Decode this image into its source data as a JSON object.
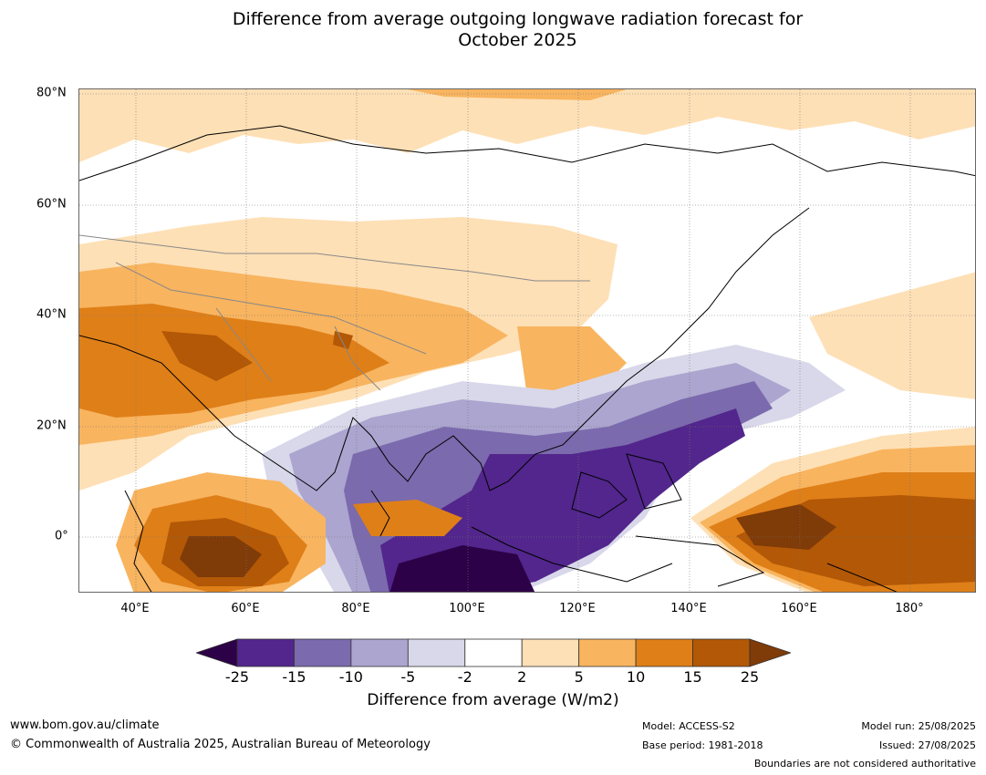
{
  "title_line1": "Difference from average outgoing longwave radiation forecast for",
  "title_line2": "October 2025",
  "lat_labels": [
    "80°N",
    "60°N",
    "40°N",
    "20°N",
    "0°"
  ],
  "lon_labels": [
    "40°E",
    "60°E",
    "80°E",
    "100°E",
    "120°E",
    "140°E",
    "160°E",
    "180°"
  ],
  "colorbar": {
    "ticks": [
      "-25",
      "-15",
      "-10",
      "-5",
      "-2",
      "2",
      "5",
      "10",
      "15",
      "25"
    ],
    "colors": [
      "#2d0147",
      "#52268c",
      "#7b6aad",
      "#aba5cf",
      "#d8d8ea",
      "#ffffff",
      "#fee0b6",
      "#f8b45f",
      "#df7f18",
      "#b25806",
      "#7f3b08"
    ],
    "label": "Difference from average (W/m2)"
  },
  "footer": {
    "website": "www.bom.gov.au/climate",
    "copyright": "© Commonwealth of Australia 2025, Australian Bureau of Meteorology",
    "model": "Model: ACCESS-S2",
    "base_period": "Base period: 1981-2018",
    "model_run": "Model run: 25/08/2025",
    "issued": "Issued: 27/08/2025",
    "disclaimer": "Boundaries are not considered authoritative"
  }
}
